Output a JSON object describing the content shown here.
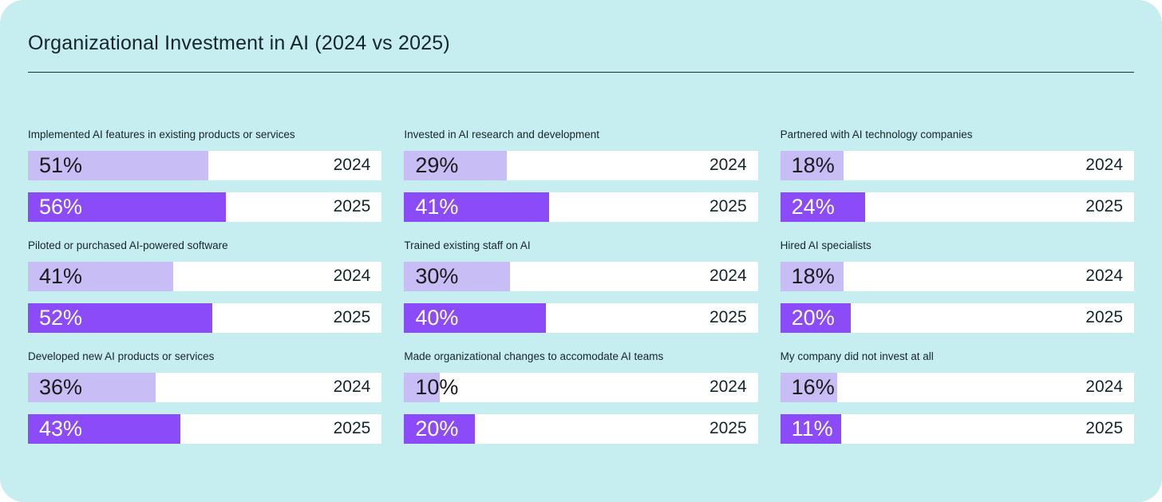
{
  "page": {
    "title": "Organizational Investment in AI (2024 vs 2025)"
  },
  "colors": {
    "background": "#c6edf0",
    "bar_track": "#ffffff",
    "bar_2024": "#c9bdf5",
    "bar_2025": "#8b4bf9",
    "text_dark": "#15262b",
    "text_on_2025": "#ffffff"
  },
  "chart_data": {
    "type": "bar",
    "orientation": "horizontal",
    "title": "Organizational Investment in AI (2024 vs 2025)",
    "unit": "percent",
    "value_range": [
      0,
      100
    ],
    "categories": [
      "Implemented AI features in existing products or services",
      "Invested in AI research and development",
      "Partnered with AI technology companies",
      "Piloted or purchased AI-powered software",
      "Trained existing staff on AI",
      "Hired AI specialists",
      "Developed new AI products or services",
      "Made organizational changes to accomodate AI teams",
      "My company did not invest at all"
    ],
    "series": [
      {
        "name": "2024",
        "values": [
          51,
          29,
          18,
          41,
          30,
          18,
          36,
          10,
          16
        ]
      },
      {
        "name": "2025",
        "values": [
          56,
          41,
          24,
          52,
          40,
          20,
          43,
          20,
          11
        ]
      }
    ],
    "layout": {
      "grid": "3 columns x 3 rows of category groups",
      "bars_per_group": "2024 bar above 2025 bar",
      "data_labels": "percent value at left inside fill",
      "year_labels": "right-aligned inside white track",
      "gridlines": false,
      "axes_shown": false
    }
  },
  "groups": [
    {
      "label": "Implemented AI features in existing products or services",
      "bars": [
        {
          "year": "2024",
          "value": 51,
          "label": "51%"
        },
        {
          "year": "2025",
          "value": 56,
          "label": "56%"
        }
      ]
    },
    {
      "label": "Invested in AI research and development",
      "bars": [
        {
          "year": "2024",
          "value": 29,
          "label": "29%"
        },
        {
          "year": "2025",
          "value": 41,
          "label": "41%"
        }
      ]
    },
    {
      "label": "Partnered with AI technology companies",
      "bars": [
        {
          "year": "2024",
          "value": 18,
          "label": "18%"
        },
        {
          "year": "2025",
          "value": 24,
          "label": "24%"
        }
      ]
    },
    {
      "label": "Piloted or purchased AI-powered software",
      "bars": [
        {
          "year": "2024",
          "value": 41,
          "label": "41%"
        },
        {
          "year": "2025",
          "value": 52,
          "label": "52%"
        }
      ]
    },
    {
      "label": "Trained existing staff on AI",
      "bars": [
        {
          "year": "2024",
          "value": 30,
          "label": "30%"
        },
        {
          "year": "2025",
          "value": 40,
          "label": "40%"
        }
      ]
    },
    {
      "label": "Hired AI specialists",
      "bars": [
        {
          "year": "2024",
          "value": 18,
          "label": "18%"
        },
        {
          "year": "2025",
          "value": 20,
          "label": "20%"
        }
      ]
    },
    {
      "label": "Developed new AI products or services",
      "bars": [
        {
          "year": "2024",
          "value": 36,
          "label": "36%"
        },
        {
          "year": "2025",
          "value": 43,
          "label": "43%"
        }
      ]
    },
    {
      "label": "Made organizational changes to accomodate AI teams",
      "bars": [
        {
          "year": "2024",
          "value": 10,
          "label": "10%"
        },
        {
          "year": "2025",
          "value": 20,
          "label": "20%"
        }
      ]
    },
    {
      "label": "My company did not invest at all",
      "bars": [
        {
          "year": "2024",
          "value": 16,
          "label": "16%"
        },
        {
          "year": "2025",
          "value": 11,
          "label": "11%"
        }
      ]
    }
  ]
}
